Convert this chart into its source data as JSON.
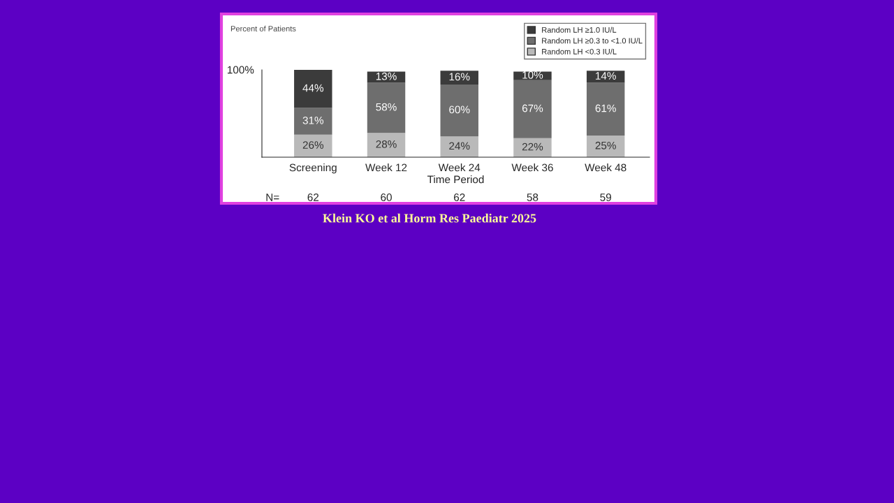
{
  "chart_data": {
    "type": "bar",
    "stacked": true,
    "ylabel": "Percent of Patients",
    "xlabel": "Time Period",
    "categories": [
      "Screening",
      "Week 12",
      "Week 24",
      "Week 36",
      "Week 48"
    ],
    "series": [
      {
        "name": "Random LH <0.3 IU/L",
        "color": "#b9b9b9",
        "values": [
          26,
          28,
          24,
          22,
          25
        ],
        "value_labels": [
          "26%",
          "28%",
          "24%",
          "22%",
          "25%"
        ]
      },
      {
        "name": "Random LH ≥0.3 to <1.0 IU/L",
        "color": "#6e6e6e",
        "values": [
          31,
          58,
          60,
          67,
          61
        ],
        "value_labels": [
          "31%",
          "58%",
          "60%",
          "67%",
          "61%"
        ]
      },
      {
        "name": "Random LH ≥1.0 IU/L",
        "color": "#3b3b3b",
        "values": [
          44,
          13,
          16,
          10,
          14
        ],
        "value_labels": [
          "44%",
          "13%",
          "16%",
          "10%",
          "14%"
        ]
      }
    ],
    "ylim": [
      0,
      101
    ],
    "legend": "top right",
    "grid": false,
    "annotations": [
      "100%",
      "N=",
      "62",
      "60",
      "62",
      "58",
      "59",
      "Klein KO et al Horm Res Paediatr 2025"
    ]
  }
}
